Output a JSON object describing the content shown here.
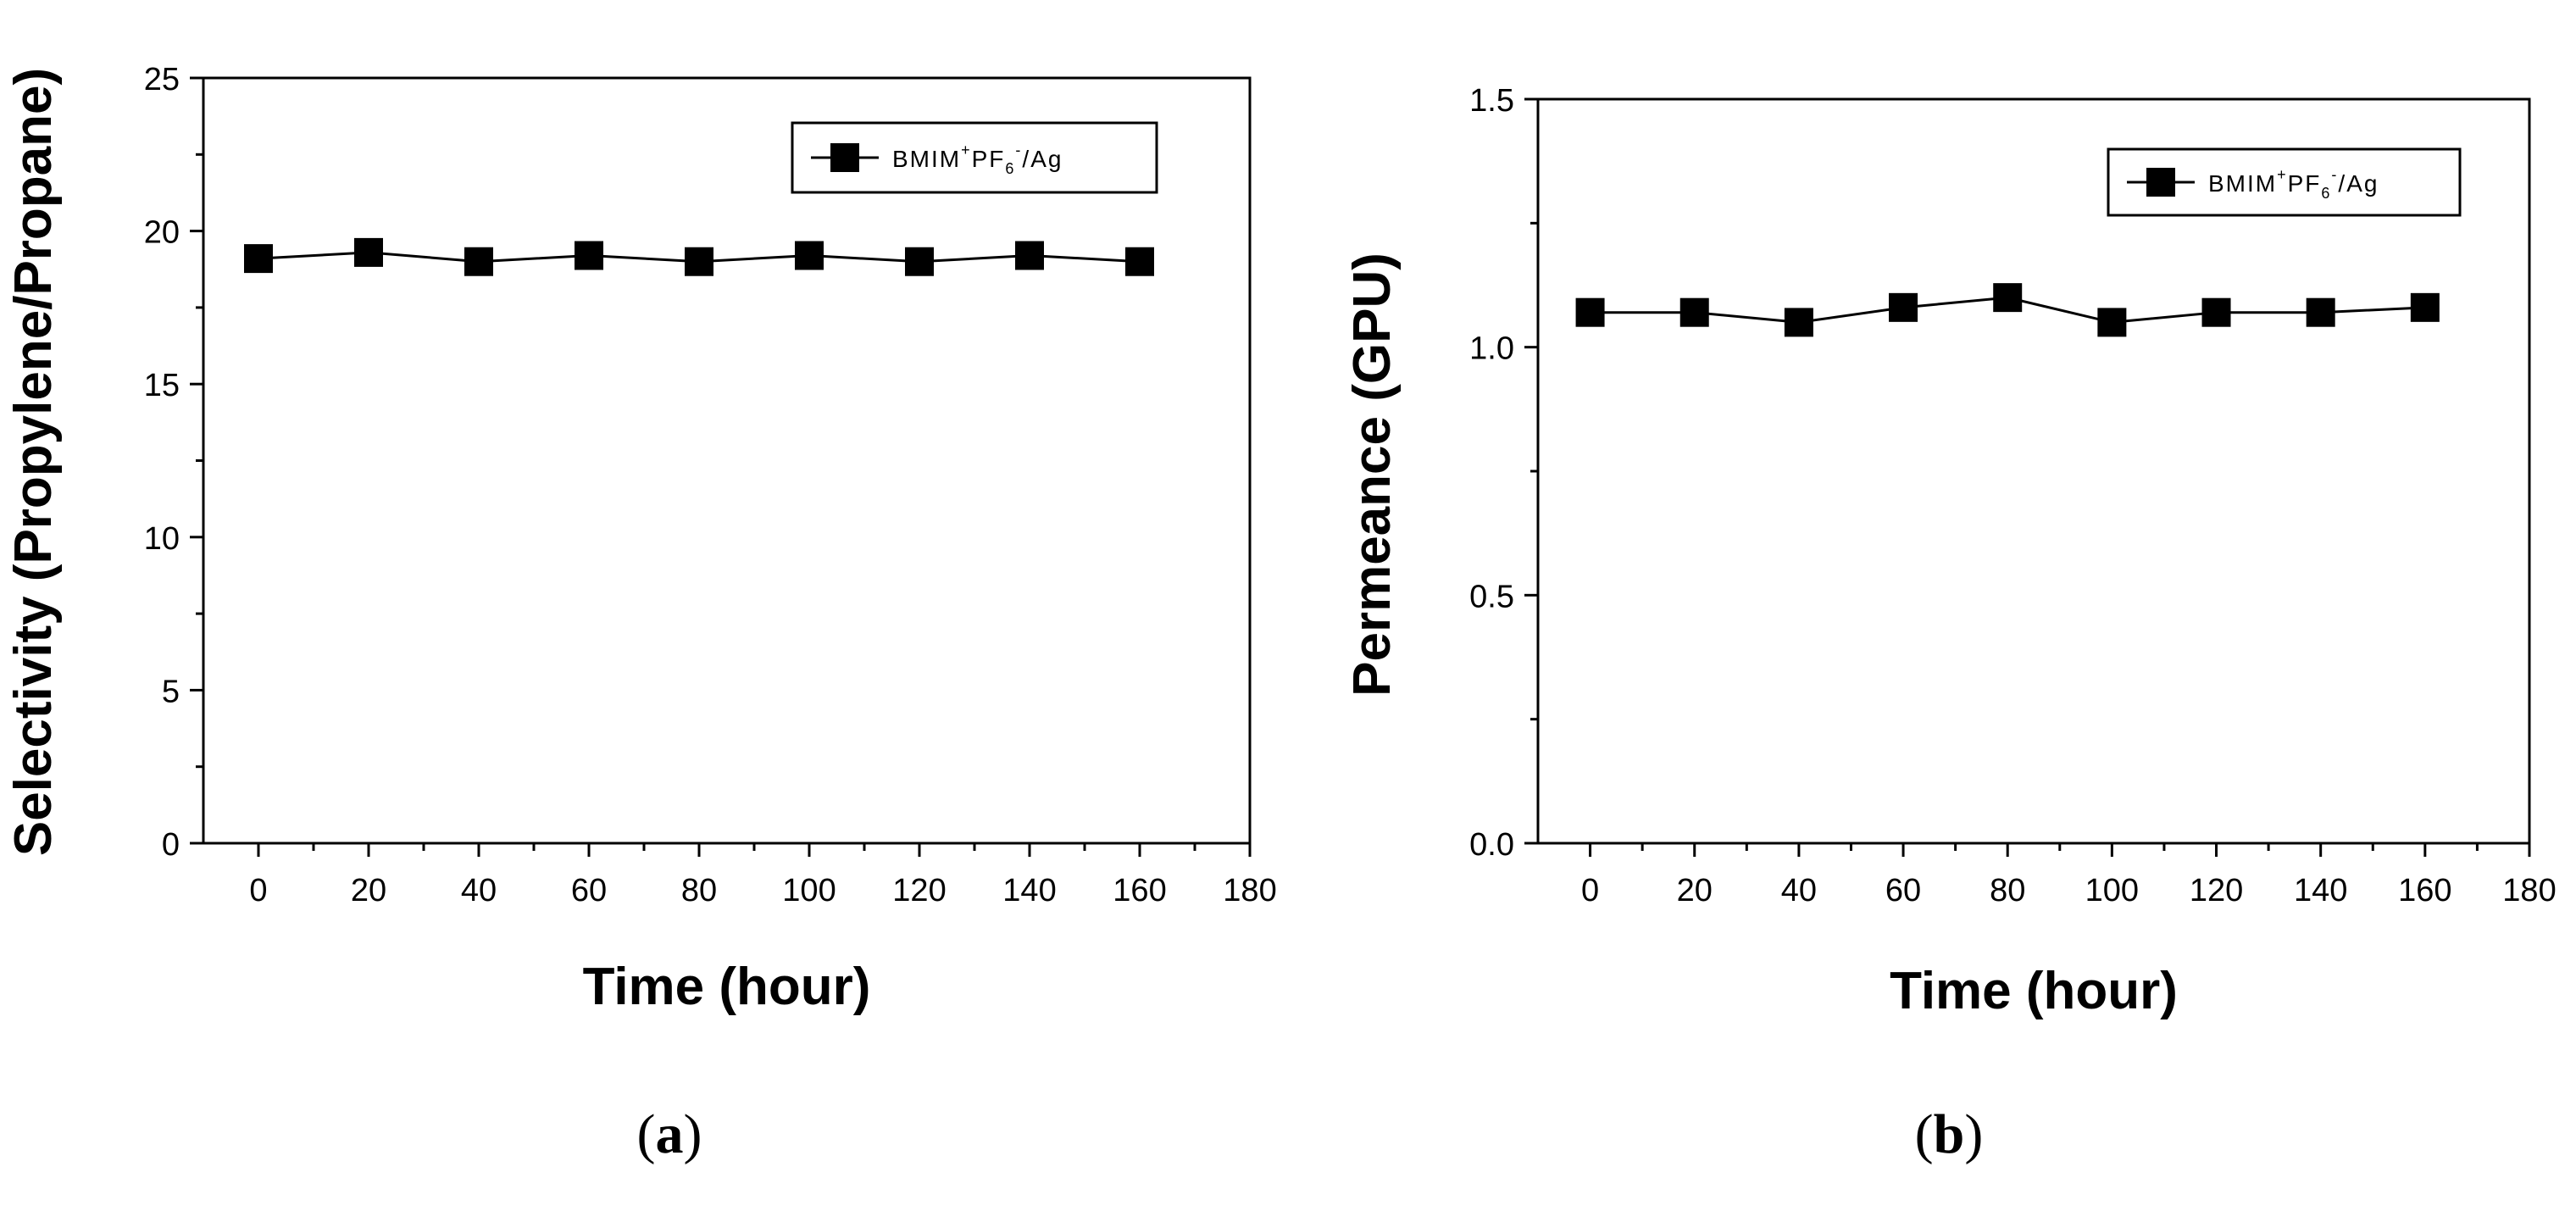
{
  "chart_data": [
    {
      "type": "line",
      "panel_label": "a",
      "xlabel": "Time (hour)",
      "ylabel": "Selectivity (Propylene/Propane)",
      "xlim": [
        -10,
        180
      ],
      "ylim": [
        0,
        25
      ],
      "xticks": [
        0,
        20,
        40,
        60,
        80,
        100,
        120,
        140,
        160,
        180
      ],
      "yticks": [
        0,
        5,
        10,
        15,
        20,
        25
      ],
      "yticklabels": [
        "0",
        "5",
        "10",
        "15",
        "20",
        "25"
      ],
      "legend": {
        "placement": "top-right",
        "text": "BMIM",
        "sup1": "+",
        "mid": "PF",
        "sub": "6",
        "sup2": "-",
        "tail": "/Ag"
      },
      "series": [
        {
          "name": "BMIM+PF6-/Ag",
          "marker": "square",
          "color": "#000000",
          "x": [
            0,
            20,
            40,
            60,
            80,
            100,
            120,
            140,
            160
          ],
          "y": [
            19.1,
            19.3,
            19.0,
            19.2,
            19.0,
            19.2,
            19.0,
            19.2,
            19.0
          ]
        }
      ]
    },
    {
      "type": "line",
      "panel_label": "b",
      "xlabel": "Time (hour)",
      "ylabel": "Permeance (GPU)",
      "xlim": [
        -10,
        180
      ],
      "ylim": [
        0,
        1.5
      ],
      "xticks": [
        0,
        20,
        40,
        60,
        80,
        100,
        120,
        140,
        160,
        180
      ],
      "yticks": [
        0,
        0.5,
        1.0,
        1.5
      ],
      "yticklabels": [
        "0.0",
        "0.5",
        "1.0",
        "1.5"
      ],
      "legend": {
        "placement": "top-right",
        "text": "BMIM",
        "sup1": "+",
        "mid": "PF",
        "sub": "6",
        "sup2": "-",
        "tail": "/Ag"
      },
      "series": [
        {
          "name": "BMIM+PF6-/Ag",
          "marker": "square",
          "color": "#000000",
          "x": [
            0,
            20,
            40,
            60,
            80,
            100,
            120,
            140,
            160
          ],
          "y": [
            1.07,
            1.07,
            1.05,
            1.08,
            1.1,
            1.05,
            1.07,
            1.07,
            1.08
          ]
        }
      ]
    }
  ]
}
